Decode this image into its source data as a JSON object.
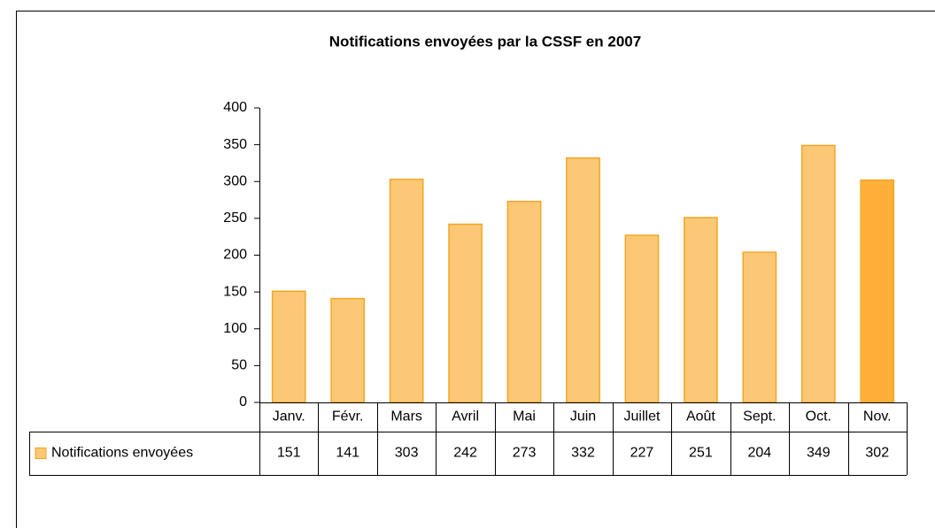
{
  "chart_data": {
    "type": "bar",
    "title": "Notifications envoyées par la CSSF en 2007",
    "categories": [
      "Janv.",
      "Févr.",
      "Mars",
      "Avril",
      "Mai",
      "Juin",
      "Juillet",
      "Août",
      "Sept.",
      "Oct.",
      "Nov."
    ],
    "series": [
      {
        "name": "Notifications envoyées",
        "color": "#fcc875",
        "colors": [
          "#fcc875",
          "#fcc875",
          "#fcc875",
          "#fcc875",
          "#fcc875",
          "#fcc875",
          "#fcc875",
          "#fcc875",
          "#fcc875",
          "#fcc875",
          "#ffb039"
        ],
        "values": [
          151,
          141,
          303,
          242,
          273,
          332,
          227,
          251,
          204,
          349,
          302
        ]
      }
    ],
    "ylim": [
      0,
      400
    ],
    "yticks": [
      0,
      50,
      100,
      150,
      200,
      250,
      300,
      350,
      400
    ],
    "grid": false
  }
}
